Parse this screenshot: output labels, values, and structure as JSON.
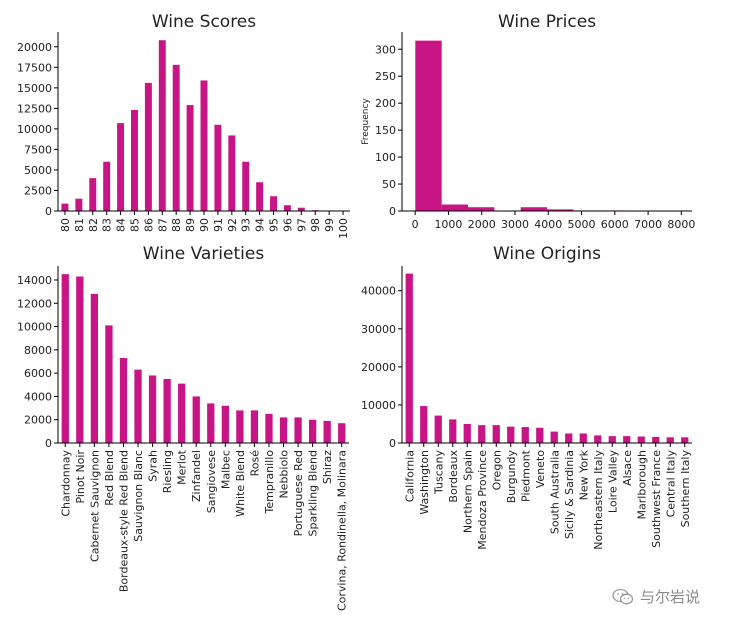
{
  "colors": {
    "bar": "#c71585",
    "axis": "#000000",
    "text": "#222222"
  },
  "chart_data": [
    {
      "type": "bar",
      "title": "Wine Scores",
      "categories": [
        "80",
        "81",
        "82",
        "83",
        "84",
        "85",
        "86",
        "87",
        "88",
        "89",
        "90",
        "91",
        "92",
        "93",
        "94",
        "95",
        "96",
        "97",
        "98",
        "99",
        "100"
      ],
      "values": [
        900,
        1500,
        4000,
        6000,
        10700,
        12300,
        15600,
        20800,
        17800,
        12900,
        15900,
        10500,
        9200,
        6000,
        3500,
        1800,
        700,
        400,
        100,
        50,
        20
      ],
      "ylim": [
        0,
        21800
      ],
      "yticks": [
        0,
        2500,
        5000,
        7500,
        10000,
        12500,
        15000,
        17500,
        20000
      ],
      "xlabel_rotation": 90,
      "grid": false
    },
    {
      "type": "histogram",
      "title": "Wine Prices",
      "ylabel": "Frequency",
      "bins": [
        {
          "x0": 4,
          "x1": 796,
          "count": 316
        },
        {
          "x0": 796,
          "x1": 1588,
          "count": 12
        },
        {
          "x0": 1588,
          "x1": 2380,
          "count": 7
        },
        {
          "x0": 2380,
          "x1": 3172,
          "count": 0
        },
        {
          "x0": 3172,
          "x1": 3964,
          "count": 7
        },
        {
          "x0": 3964,
          "x1": 4756,
          "count": 3
        },
        {
          "x0": 4756,
          "x1": 5548,
          "count": 1
        },
        {
          "x0": 5548,
          "x1": 6340,
          "count": 1
        },
        {
          "x0": 6340,
          "x1": 7132,
          "count": 0
        },
        {
          "x0": 7132,
          "x1": 7924,
          "count": 0
        }
      ],
      "xlim": [
        -396,
        8320
      ],
      "ylim": [
        0,
        332
      ],
      "xticks": [
        0,
        1000,
        2000,
        3000,
        4000,
        5000,
        6000,
        7000,
        8000
      ],
      "yticks": [
        0,
        50,
        100,
        150,
        200,
        250,
        300
      ],
      "grid": false
    },
    {
      "type": "bar",
      "title": "Wine Varieties",
      "categories": [
        "Chardonnay",
        "Pinot Noir",
        "Cabernet Sauvignon",
        "Red Blend",
        "Bordeaux-style Red Blend",
        "Sauvignon Blanc",
        "Syrah",
        "Riesling",
        "Merlot",
        "Zinfandel",
        "Sangiovese",
        "Malbec",
        "White Blend",
        "Rosé",
        "Tempranillo",
        "Nebbiolo",
        "Portuguese Red",
        "Sparkling Blend",
        "Shiraz",
        "Corvina, Rondinella, Molinara"
      ],
      "values": [
        14500,
        14300,
        12800,
        10100,
        7300,
        6300,
        5800,
        5500,
        5100,
        4000,
        3400,
        3200,
        2800,
        2800,
        2500,
        2200,
        2200,
        2000,
        1900,
        1700
      ],
      "ylim": [
        0,
        15200
      ],
      "yticks": [
        0,
        2000,
        4000,
        6000,
        8000,
        10000,
        12000,
        14000
      ],
      "xlabel_rotation": 90,
      "grid": false
    },
    {
      "type": "bar",
      "title": "Wine Origins",
      "categories": [
        "California",
        "Washington",
        "Tuscany",
        "Bordeaux",
        "Northern Spain",
        "Mendoza Province",
        "Oregon",
        "Burgundy",
        "Piedmont",
        "Veneto",
        "South Australia",
        "Sicily & Sardinia",
        "New York",
        "Northeastern Italy",
        "Loire Valley",
        "Alsace",
        "Marlborough",
        "Southwest France",
        "Central Italy",
        "Southern Italy"
      ],
      "values": [
        44500,
        9700,
        7200,
        6200,
        5000,
        4700,
        4700,
        4300,
        4200,
        4000,
        3000,
        2500,
        2500,
        2000,
        1800,
        1800,
        1700,
        1600,
        1500,
        1500
      ],
      "ylim": [
        0,
        46500
      ],
      "yticks": [
        0,
        10000,
        20000,
        30000,
        40000
      ],
      "xlabel_rotation": 90,
      "grid": false
    }
  ],
  "watermark": {
    "text": "与尔岩说",
    "icon": "wechat-icon"
  }
}
